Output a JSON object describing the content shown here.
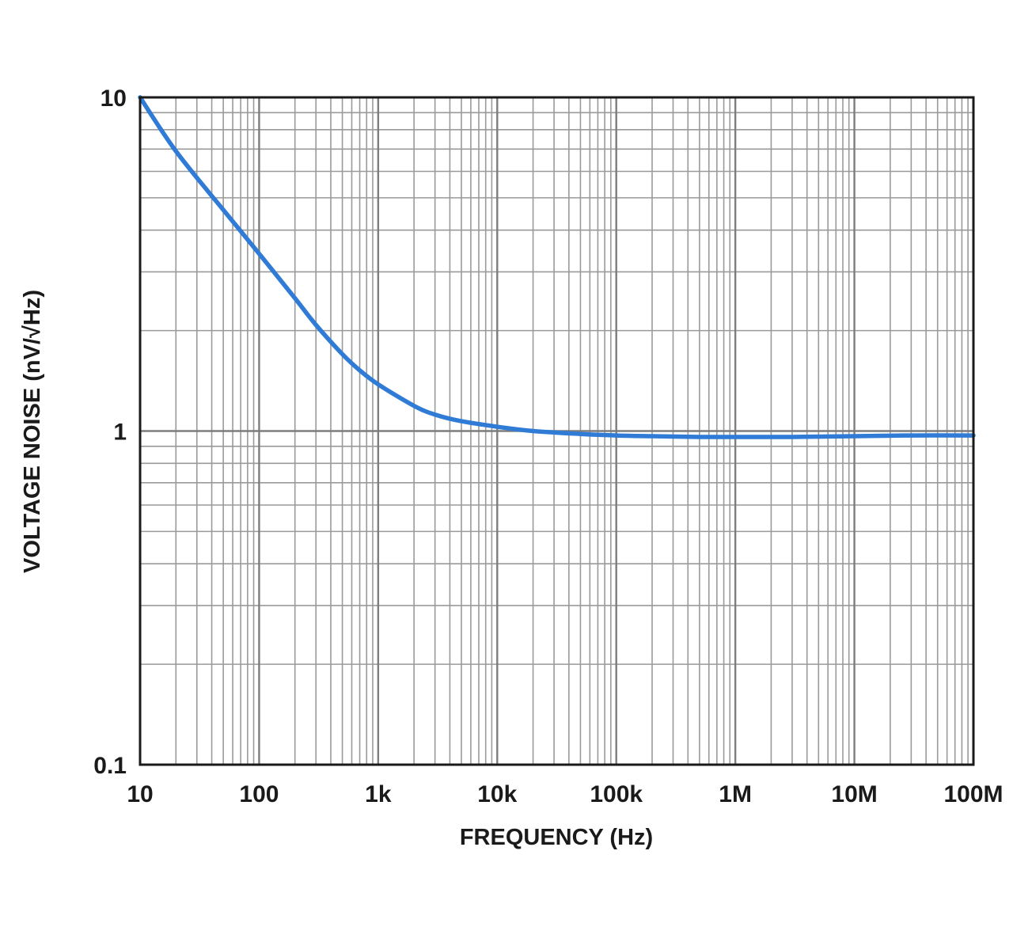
{
  "chart_data": {
    "type": "line",
    "xlabel": "FREQUENCY (Hz)",
    "ylabel": "VOLTAGE NOISE (nV/√Hz)",
    "x_scale": "log",
    "y_scale": "log",
    "xlim": [
      10,
      100000000
    ],
    "ylim": [
      0.1,
      10
    ],
    "grid": true,
    "legend": "none",
    "x_ticks": [
      {
        "value": 10,
        "label": "10"
      },
      {
        "value": 100,
        "label": "100"
      },
      {
        "value": 1000,
        "label": "1k"
      },
      {
        "value": 10000,
        "label": "10k"
      },
      {
        "value": 100000,
        "label": "100k"
      },
      {
        "value": 1000000,
        "label": "1M"
      },
      {
        "value": 10000000,
        "label": "10M"
      },
      {
        "value": 100000000,
        "label": "100M"
      }
    ],
    "y_ticks": [
      {
        "value": 10,
        "label": "10"
      },
      {
        "value": 1,
        "label": "1"
      },
      {
        "value": 0.1,
        "label": "0.1"
      }
    ],
    "series": [
      {
        "color": "#2f7bd6",
        "x": [
          10,
          20,
          50,
          100,
          200,
          300,
          500,
          700,
          1000,
          2000,
          3000,
          5000,
          10000,
          20000,
          50000,
          100000,
          200000,
          500000,
          1000000,
          3000000,
          10000000,
          30000000,
          100000000
        ],
        "y": [
          10,
          6.9,
          4.6,
          3.4,
          2.5,
          2.08,
          1.7,
          1.52,
          1.38,
          1.19,
          1.12,
          1.07,
          1.03,
          1.0,
          0.98,
          0.97,
          0.965,
          0.96,
          0.96,
          0.96,
          0.965,
          0.97,
          0.97
        ]
      }
    ]
  }
}
